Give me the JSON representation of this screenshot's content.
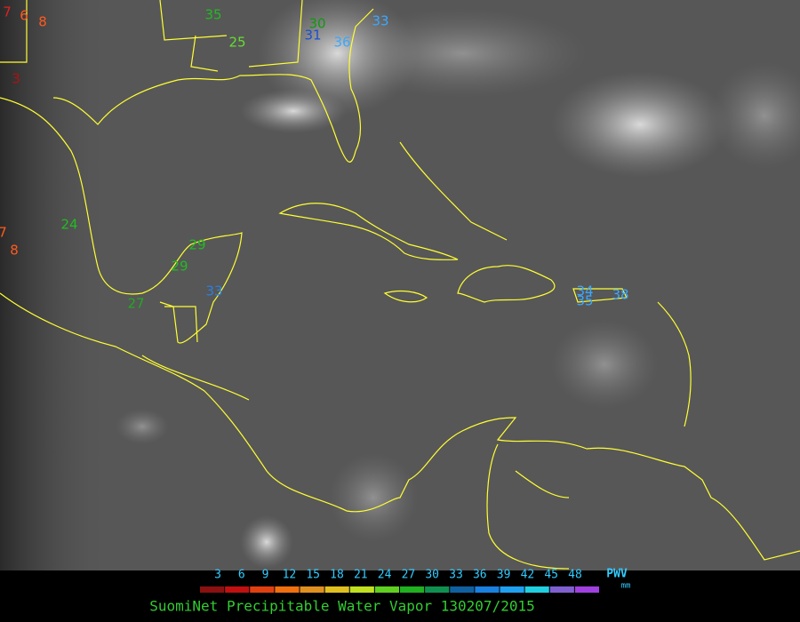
{
  "stations": [
    {
      "value": 7,
      "color": "#e02020"
    },
    {
      "value": 6,
      "color": "#ff5a1e"
    },
    {
      "value": 8,
      "color": "#ff5a1e"
    },
    {
      "value": 35,
      "color": "#22bb22"
    },
    {
      "value": 30,
      "color": "#119911"
    },
    {
      "value": 31,
      "color": "#1a4fd0"
    },
    {
      "value": 33,
      "color": "#3aa8ff"
    },
    {
      "value": 25,
      "color": "#66dd33"
    },
    {
      "value": 36,
      "color": "#3aa8ff"
    },
    {
      "value": 3,
      "color": "#b01010"
    },
    {
      "value": 24,
      "color": "#22bb22"
    },
    {
      "value": 7,
      "color": "#ff5a1e"
    },
    {
      "value": 8,
      "color": "#ff5a1e"
    },
    {
      "value": 29,
      "color": "#22bb22"
    },
    {
      "value": 29,
      "color": "#22bb22"
    },
    {
      "value": 27,
      "color": "#22aa22"
    },
    {
      "value": 33,
      "color": "#2a7fe0"
    },
    {
      "value": 34,
      "color": "#3aa8ff"
    },
    {
      "value": 35,
      "color": "#3aa8ff"
    },
    {
      "value": 38,
      "color": "#3aa8ff"
    }
  ],
  "legend": {
    "ticks": [
      3,
      6,
      9,
      12,
      15,
      18,
      21,
      24,
      27,
      30,
      33,
      36,
      39,
      42,
      45,
      48
    ],
    "colors": [
      "#8b1010",
      "#c01010",
      "#e04010",
      "#f07010",
      "#e09020",
      "#e0c020",
      "#c0e020",
      "#60d020",
      "#20b020",
      "#109050",
      "#1060a0",
      "#1a80e0",
      "#20a0f0",
      "#20d0e0",
      "#8060d0",
      "#a040e0"
    ],
    "unit": "PWV",
    "unit_sub": "mm"
  },
  "title": "SuomiNet Precipitable Water Vapor 130207/2015"
}
